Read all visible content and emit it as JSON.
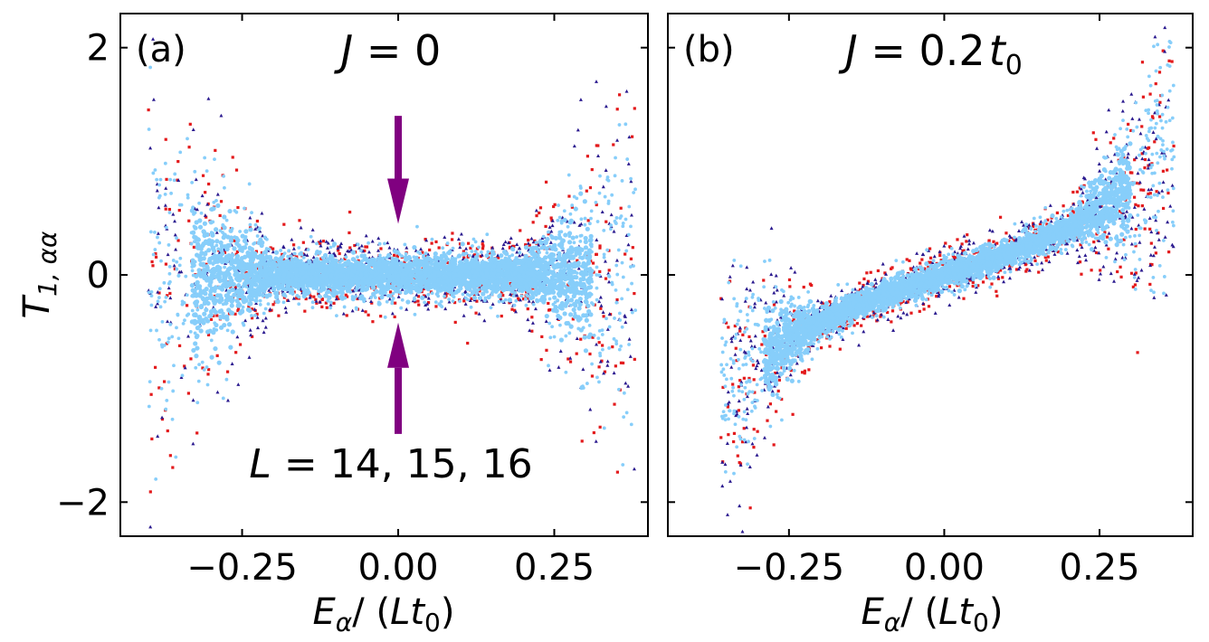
{
  "chart_data": [
    {
      "type": "scatter",
      "panel_label": "(a)",
      "title": "J = 0",
      "title_parts": {
        "var": "J",
        "rest": " = 0"
      },
      "xlabel": "E_α / (L t_0)",
      "xlabel_parts": {
        "var": "E",
        "sub": "α",
        "mid": "/ (",
        "var2": "Lt",
        "sub2": "0",
        "end": ")"
      },
      "ylabel": "T_{1,αα}",
      "ylabel_parts": {
        "var": "T",
        "sub": "1, αα"
      },
      "xlim": [
        -0.445,
        0.4
      ],
      "ylim": [
        -2.3,
        2.3
      ],
      "xticks": [
        -0.25,
        0.0,
        0.25
      ],
      "xtick_labels": [
        "−0.25",
        "0.00",
        "0.25"
      ],
      "yticks": [
        -2,
        0,
        2
      ],
      "ytick_labels": [
        "−2",
        "0",
        "2"
      ],
      "annotation": "L = 14, 15, 16",
      "annotation_parts": {
        "var": "L",
        "rest": " = 14, 15, 16"
      },
      "arrows": [
        {
          "x": 0.0,
          "from_y": 1.4,
          "to_y": 0.45,
          "color": "#800080"
        },
        {
          "x": 0.0,
          "from_y": -1.4,
          "to_y": -0.42,
          "color": "#800080"
        }
      ],
      "series": [
        {
          "name": "L = 14",
          "marker": "square",
          "color": "#e31a1c"
        },
        {
          "name": "L = 15",
          "marker": "triangle",
          "color": "#2b1a8f"
        },
        {
          "name": "L = 16",
          "marker": "circle",
          "color": "#87cefa"
        }
      ],
      "distribution": {
        "x_range": [
          -0.4,
          0.38
        ],
        "center_offset": 0.0,
        "center_slope": 0.0,
        "core_halfwidth": 0.2,
        "edge_growth": 1.0
      }
    },
    {
      "type": "scatter",
      "panel_label": "(b)",
      "title": "J = 0.2 t_0",
      "title_parts": {
        "var": "J",
        "rest": " = 0.2",
        "var2": "t",
        "sub2": "0"
      },
      "xlabel": "E_α / (L t_0)",
      "xlabel_parts": {
        "var": "E",
        "sub": "α",
        "mid": "/ (",
        "var2": "Lt",
        "sub2": "0",
        "end": ")"
      },
      "xlim": [
        -0.445,
        0.4
      ],
      "ylim": [
        -2.3,
        2.3
      ],
      "xticks": [
        -0.25,
        0.0,
        0.25
      ],
      "xtick_labels": [
        "−0.25",
        "0.00",
        "0.25"
      ],
      "series": [
        {
          "name": "L = 14",
          "marker": "square",
          "color": "#e31a1c"
        },
        {
          "name": "L = 15",
          "marker": "triangle",
          "color": "#2b1a8f"
        },
        {
          "name": "L = 16",
          "marker": "circle",
          "color": "#87cefa"
        }
      ],
      "distribution": {
        "x_range": [
          -0.36,
          0.37
        ],
        "center_offset": 0.0,
        "center_slope": 1.0,
        "core_halfwidth": 0.18,
        "edge_growth": 1.0
      }
    }
  ]
}
